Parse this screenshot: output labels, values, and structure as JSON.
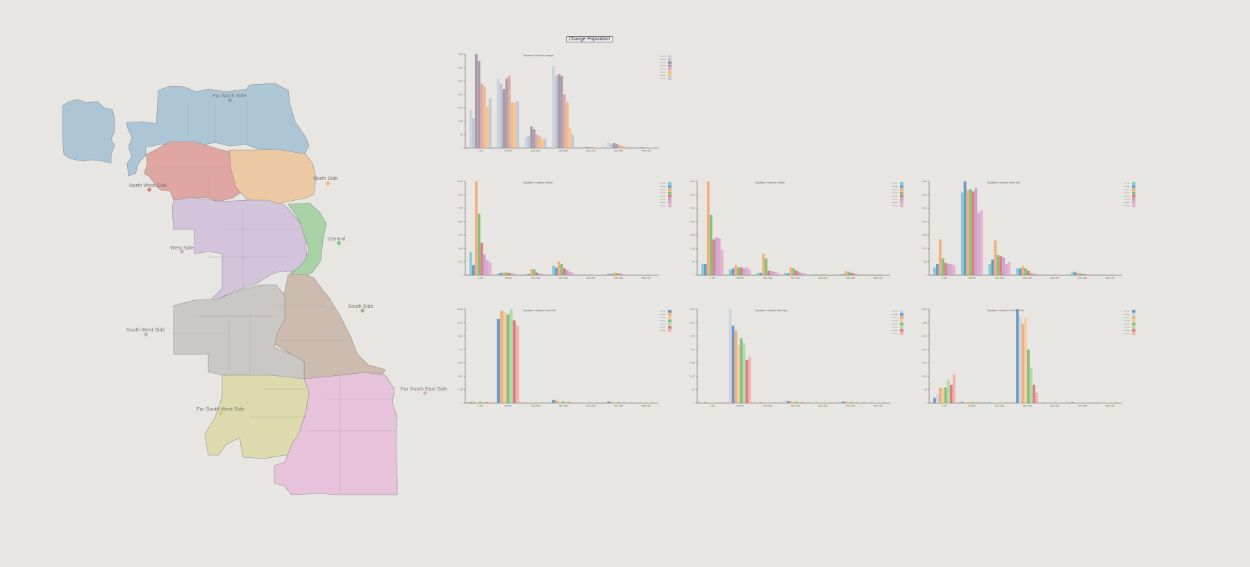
{
  "controls": {
    "change_button": "Change Population"
  },
  "map": {
    "regions": [
      {
        "name": "Far North Side",
        "color": "#adc6d6"
      },
      {
        "name": "North West Side",
        "color": "#e0a7a2"
      },
      {
        "name": "North Side",
        "color": "#edc9a3"
      },
      {
        "name": "Central",
        "color": "#a9d2a6"
      },
      {
        "name": "West Side",
        "color": "#d3c4dc"
      },
      {
        "name": "South Side",
        "color": "#cdbbb0"
      },
      {
        "name": "South West Side",
        "color": "#c9c8c5"
      },
      {
        "name": "Far South West Side",
        "color": "#dddbad"
      },
      {
        "name": "Far South East Side",
        "color": "#e6c3da"
      }
    ]
  },
  "chart_data": [
    {
      "type": "bar",
      "title": "Population / Distance: average",
      "categories": [
        "0-499",
        "500-999",
        "1000-1499",
        "1500-1999",
        "2000-2499",
        "2500-2999",
        "3000-3499"
      ],
      "ylim": [
        0,
        3500
      ],
      "colors": [
        "#c9cfdb",
        "#b8c0d2",
        "#9f8e9e",
        "#a5939f",
        "#d9a3a3",
        "#f1b47c",
        "#f2c08e",
        "#b9c3d3"
      ],
      "series_values": [
        [
          1400,
          1100,
          3550,
          3250,
          2400,
          2300,
          1550,
          1850
        ],
        [
          2600,
          2400,
          2200,
          2600,
          2700,
          1700,
          1700,
          1750
        ],
        [
          400,
          450,
          800,
          700,
          500,
          450,
          350,
          350
        ],
        [
          3050,
          2700,
          2750,
          2700,
          2000,
          1700,
          750,
          500
        ],
        [
          50,
          40,
          40,
          30,
          30,
          30,
          20,
          20
        ],
        [
          200,
          150,
          180,
          150,
          100,
          80,
          60,
          40
        ],
        [
          40,
          30,
          30,
          20,
          20,
          10,
          10,
          10
        ]
      ]
    },
    {
      "type": "bar",
      "title": "Population / Distance: Central",
      "categories": [
        "0-499",
        "500-999",
        "1000-1499",
        "1500-1999",
        "2000-2499",
        "2500-2999",
        "3000-3499"
      ],
      "ylim": [
        0,
        11000
      ],
      "colors": [
        "#77c6d3",
        "#5a8fc0",
        "#f0a86a",
        "#78b872",
        "#d9706c",
        "#c49bd0",
        "#d6a0c8",
        "#e5a8cf"
      ],
      "series_values": [
        [
          2700,
          1200,
          11000,
          7200,
          3800,
          2400,
          1800,
          1500
        ],
        [
          200,
          250,
          350,
          300,
          250,
          200,
          150,
          100
        ],
        [
          100,
          150,
          700,
          700,
          300,
          200,
          150,
          100
        ],
        [
          1100,
          900,
          1600,
          1300,
          800,
          600,
          400,
          300
        ],
        [
          60,
          50,
          80,
          60,
          50,
          40,
          30,
          20
        ],
        [
          200,
          150,
          300,
          250,
          180,
          120,
          90,
          60
        ],
        [
          50,
          40,
          50,
          40,
          30,
          20,
          20,
          10
        ]
      ]
    },
    {
      "type": "bar",
      "title": "Population / Distance: Central",
      "categories": [
        "0-499",
        "500-999",
        "1000-1499",
        "1500-1999",
        "2000-2499",
        "2500-2999",
        "3000-3499"
      ],
      "ylim": [
        0,
        4200
      ],
      "colors": [
        "#77c6d3",
        "#5a8fc0",
        "#f0a86a",
        "#78b872",
        "#d9706c",
        "#c49bd0",
        "#d6a0c8",
        "#e5a8cf"
      ],
      "series_values": [
        [
          500,
          500,
          4200,
          2700,
          1600,
          1700,
          1650,
          1150
        ],
        [
          250,
          300,
          450,
          350,
          350,
          300,
          350,
          250
        ],
        [
          100,
          100,
          950,
          750,
          200,
          180,
          150,
          120
        ],
        [
          100,
          80,
          350,
          300,
          200,
          150,
          100,
          80
        ],
        [
          30,
          30,
          40,
          30,
          30,
          20,
          20,
          10
        ],
        [
          50,
          40,
          180,
          140,
          100,
          80,
          60,
          40
        ],
        [
          20,
          20,
          30,
          20,
          20,
          10,
          10,
          10
        ]
      ]
    },
    {
      "type": "bar",
      "title": "Population / Distance: South Side",
      "categories": [
        "0-499",
        "500-999",
        "1000-1499",
        "1500-1999",
        "2000-2499",
        "2500-2999",
        "3000-3499"
      ],
      "ylim": [
        0,
        4200
      ],
      "colors": [
        "#77c6d3",
        "#5a8fc0",
        "#f0a86a",
        "#78b872",
        "#d9706c",
        "#c49bd0",
        "#d6a0c8",
        "#e5a8cf"
      ],
      "series_values": [
        [
          350,
          500,
          1600,
          750,
          550,
          500,
          500,
          450
        ],
        [
          3700,
          4200,
          3800,
          3850,
          3750,
          3900,
          2800,
          2900
        ],
        [
          500,
          700,
          1550,
          900,
          850,
          800,
          500,
          600
        ],
        [
          300,
          300,
          400,
          300,
          200,
          100,
          80,
          60
        ],
        [
          20,
          20,
          20,
          20,
          10,
          10,
          10,
          10
        ],
        [
          150,
          130,
          100,
          80,
          60,
          50,
          40,
          30
        ],
        [
          20,
          20,
          20,
          10,
          10,
          10,
          10,
          10
        ]
      ]
    },
    {
      "type": "bar",
      "title": "Population / Distance: North Side",
      "categories": [
        "0-499",
        "500-999",
        "1000-1499",
        "1500-1999",
        "2000-2499",
        "2500-2999",
        "3000-3499"
      ],
      "ylim": [
        0,
        12500
      ],
      "colors": [
        "#5a8fc0",
        "#f0a86a",
        "#f6c89c",
        "#78b872",
        "#a6dca0",
        "#d9706c",
        "#f5a9a4"
      ],
      "series_values": [
        [
          100,
          150,
          100,
          150,
          100,
          100,
          80
        ],
        [
          11200,
          12300,
          12100,
          11800,
          12600,
          11000,
          10300
        ],
        [
          40,
          50,
          40,
          40,
          30,
          30,
          20
        ],
        [
          400,
          300,
          250,
          200,
          150,
          100,
          80
        ],
        [
          20,
          20,
          20,
          20,
          10,
          10,
          10
        ],
        [
          200,
          150,
          120,
          100,
          80,
          60,
          40
        ],
        [
          20,
          20,
          20,
          10,
          10,
          10,
          10
        ]
      ]
    },
    {
      "type": "bar",
      "title": "Population / Distance: West Side",
      "categories": [
        "0-499",
        "500-999",
        "1000-1499",
        "1500-1999",
        "2000-2499",
        "2500-2999",
        "3000-3499"
      ],
      "ylim": [
        0,
        3700
      ],
      "colors": [
        "#c9d2e0",
        "#5a8fc0",
        "#f0a86a",
        "#f6c89c",
        "#78b872",
        "#a6dca0",
        "#d9706c",
        "#f5a9a4"
      ],
      "series_values": [
        [
          20,
          20,
          20,
          20,
          10,
          10,
          10,
          10
        ],
        [
          3700,
          3050,
          2850,
          2300,
          2550,
          2350,
          1700,
          1800
        ],
        [
          20,
          20,
          20,
          20,
          10,
          10,
          10,
          10
        ],
        [
          100,
          80,
          70,
          60,
          50,
          40,
          30,
          20
        ],
        [
          10,
          10,
          10,
          10,
          10,
          10,
          10,
          10
        ],
        [
          80,
          60,
          50,
          40,
          30,
          20,
          20,
          10
        ],
        [
          10,
          10,
          10,
          10,
          10,
          10,
          10,
          10
        ]
      ]
    },
    {
      "type": "bar",
      "title": "Population / Distance: Far South Side",
      "categories": [
        "0-499",
        "500-999",
        "1000-1499",
        "1500-1999",
        "2000-2499",
        "2500-2999",
        "3000-3499"
      ],
      "ylim": [
        0,
        3600
      ],
      "colors": [
        "#5a8fc0",
        "#c9d2e0",
        "#f0a86a",
        "#f6c89c",
        "#78b872",
        "#a6dca0",
        "#d9706c",
        "#f5a9a4"
      ],
      "series_values": [
        [
          200,
          350,
          600,
          550,
          600,
          900,
          700,
          1100
        ],
        [
          40,
          40,
          40,
          40,
          30,
          30,
          20,
          20
        ],
        [
          20,
          20,
          20,
          20,
          10,
          10,
          10,
          10
        ],
        [
          3600,
          3300,
          3050,
          3250,
          2050,
          1350,
          700,
          400
        ],
        [
          10,
          10,
          10,
          10,
          10,
          10,
          10,
          10
        ],
        [
          30,
          20,
          20,
          10,
          10,
          10,
          10,
          10
        ],
        [
          10,
          10,
          10,
          10,
          10,
          10,
          10,
          10
        ]
      ]
    }
  ]
}
